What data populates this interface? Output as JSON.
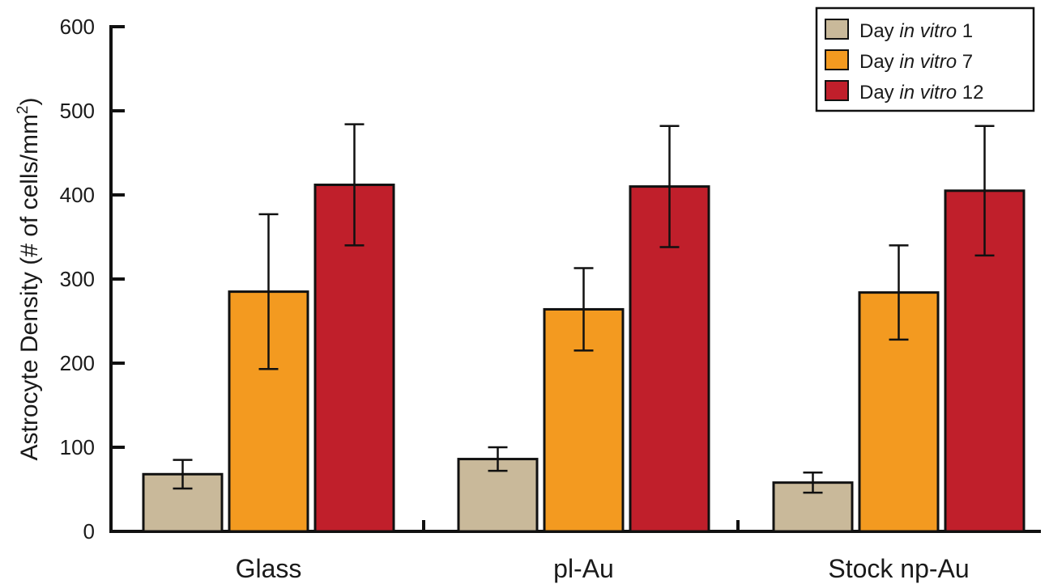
{
  "chart_data": {
    "type": "bar",
    "title": "",
    "xlabel": "",
    "ylabel": "Astrocyte Density (# of cells/mm²)",
    "ylabel_parts": {
      "before": "Astrocyte Density (# of cells/mm",
      "sup": "2",
      "after": ")"
    },
    "ylim": [
      0,
      600
    ],
    "yticks": [
      "0",
      "100",
      "200",
      "300",
      "400",
      "500",
      "600"
    ],
    "categories": [
      "Glass",
      "pl-Au",
      "Stock np-Au"
    ],
    "legend_position": "top-right",
    "grid": false,
    "series": [
      {
        "name": "Day in vitro 1",
        "legend": {
          "prefix": "Day ",
          "italic": "in vitro",
          "suffix": " 1"
        },
        "color": "#c9b99a",
        "values": [
          68,
          86,
          58
        ],
        "errors": [
          17,
          14,
          12
        ]
      },
      {
        "name": "Day in vitro 7",
        "legend": {
          "prefix": "Day ",
          "italic": "in vitro",
          "suffix": " 7"
        },
        "color": "#f39a20",
        "values": [
          285,
          264,
          284
        ],
        "errors": [
          92,
          49,
          56
        ]
      },
      {
        "name": "Day in vitro 12",
        "legend": {
          "prefix": "Day ",
          "italic": "in vitro",
          "suffix": " 12"
        },
        "color": "#c01f2b",
        "values": [
          412,
          410,
          405
        ],
        "errors": [
          72,
          72,
          77
        ]
      }
    ]
  }
}
